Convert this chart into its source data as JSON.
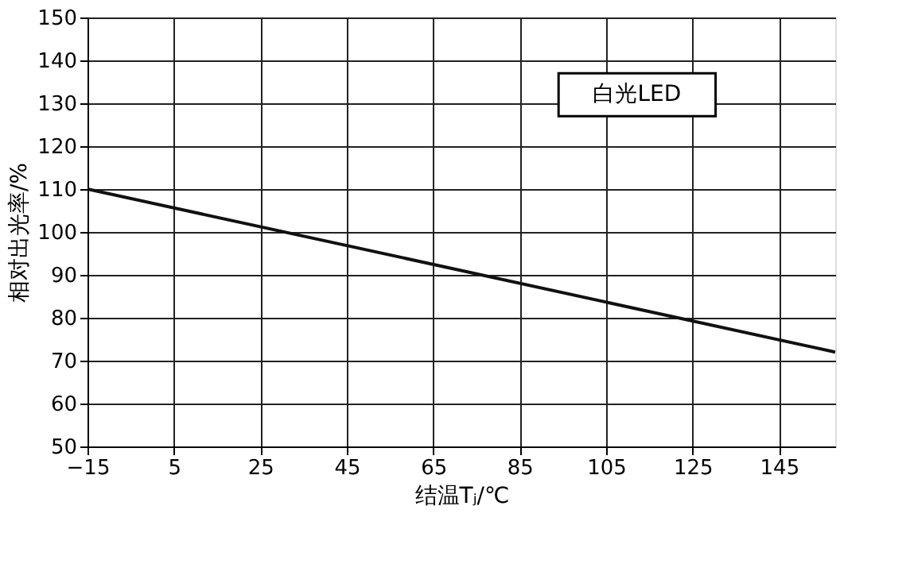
{
  "chart_data": {
    "type": "line",
    "xlabel": "结温Tⱼ/℃",
    "ylabel": "相对出光率/%",
    "x": [
      -15,
      158
    ],
    "series": [
      {
        "color": "#111111",
        "values": [
          110,
          72
        ]
      }
    ],
    "xlim": [
      -15,
      158
    ],
    "xticks": [
      -15,
      5,
      25,
      45,
      65,
      85,
      105,
      125,
      145
    ],
    "ylim": [
      50,
      150
    ],
    "yticks": [
      50,
      60,
      70,
      80,
      90,
      100,
      110,
      120,
      130,
      140,
      150
    ],
    "grid": true,
    "marker": "none",
    "line_style": "solid",
    "annotations": [
      "白光LED"
    ]
  }
}
